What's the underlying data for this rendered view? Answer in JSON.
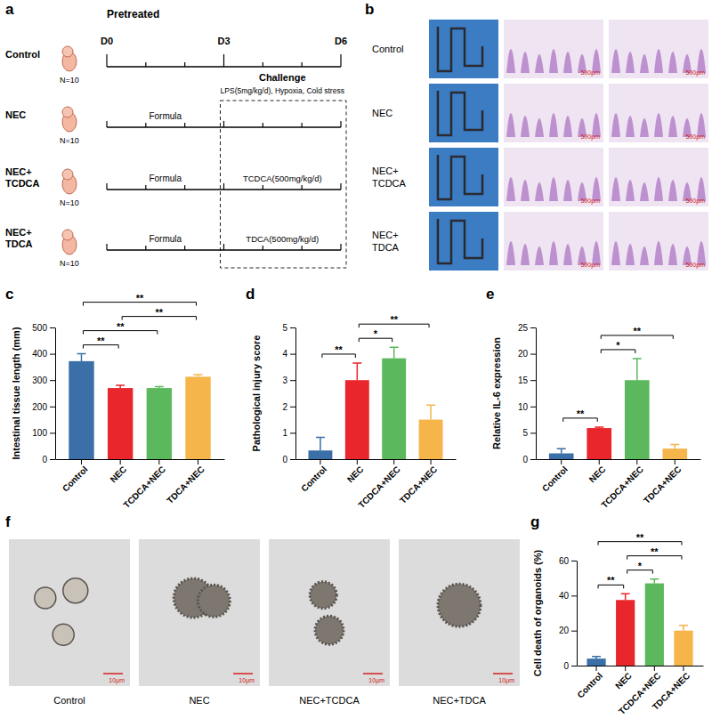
{
  "chart_data": [
    {
      "type": "bar",
      "panel": "c",
      "y_label": "Intestinal tissue length (mm)",
      "categories": [
        "Control",
        "NEC",
        "TCDCA+NEC",
        "TDCA+NEC"
      ],
      "values": [
        372,
        270,
        270,
        313
      ],
      "error": [
        28,
        10,
        5,
        8
      ],
      "colors": [
        "#3a6fa8",
        "#e8262b",
        "#5cb85c",
        "#f5b54a"
      ],
      "ylim": [
        0,
        500
      ],
      "yticks": [
        0,
        100,
        200,
        300,
        400,
        500
      ],
      "annotations": [
        {
          "between": [
            "Control",
            "NEC"
          ],
          "label": "**"
        },
        {
          "between": [
            "Control",
            "TCDCA+NEC"
          ],
          "label": "**"
        },
        {
          "between": [
            "Control",
            "TDCA+NEC"
          ],
          "label": "**"
        },
        {
          "between": [
            "NEC",
            "TDCA+NEC"
          ],
          "label": "**"
        }
      ]
    },
    {
      "type": "bar",
      "panel": "d",
      "y_label": "Pathological injury score",
      "categories": [
        "Control",
        "NEC",
        "TCDCA+NEC",
        "TDCA+NEC"
      ],
      "values": [
        0.33,
        3.0,
        3.83,
        1.5
      ],
      "error": [
        0.5,
        0.65,
        0.42,
        0.55
      ],
      "colors": [
        "#3a6fa8",
        "#e8262b",
        "#5cb85c",
        "#f5b54a"
      ],
      "ylim": [
        0,
        5
      ],
      "yticks": [
        0,
        1,
        2,
        3,
        4,
        5
      ],
      "annotations": [
        {
          "between": [
            "Control",
            "NEC"
          ],
          "label": "**"
        },
        {
          "between": [
            "NEC",
            "TCDCA+NEC"
          ],
          "label": "*"
        },
        {
          "between": [
            "NEC",
            "TDCA+NEC"
          ],
          "label": "**"
        }
      ]
    },
    {
      "type": "bar",
      "panel": "e",
      "y_label": "Relative IL-6 expression",
      "categories": [
        "Control",
        "NEC",
        "TCDCA+NEC",
        "TDCA+NEC"
      ],
      "values": [
        1.1,
        5.9,
        15.0,
        2.0
      ],
      "error": [
        0.9,
        0.2,
        4.1,
        0.8
      ],
      "colors": [
        "#3a6fa8",
        "#e8262b",
        "#5cb85c",
        "#f5b54a"
      ],
      "ylim": [
        0,
        25
      ],
      "yticks": [
        0,
        5,
        10,
        15,
        20,
        25
      ],
      "annotations": [
        {
          "between": [
            "Control",
            "NEC"
          ],
          "label": "**"
        },
        {
          "between": [
            "NEC",
            "TCDCA+NEC"
          ],
          "label": "*"
        },
        {
          "between": [
            "NEC",
            "TDCA+NEC"
          ],
          "label": "**"
        }
      ]
    },
    {
      "type": "bar",
      "panel": "g",
      "y_label": "Cell death of organoids (%)",
      "categories": [
        "Control",
        "NEC",
        "TCDCA+NEC",
        "TDCA+NEC"
      ],
      "values": [
        4,
        37.5,
        47,
        20
      ],
      "error": [
        1.2,
        3.5,
        2.5,
        3
      ],
      "colors": [
        "#3a6fa8",
        "#e8262b",
        "#5cb85c",
        "#f5b54a"
      ],
      "ylim": [
        0,
        60
      ],
      "yticks": [
        0,
        20,
        40,
        60
      ],
      "annotations": [
        {
          "between": [
            "Control",
            "NEC"
          ],
          "label": "**"
        },
        {
          "between": [
            "NEC",
            "TCDCA+NEC"
          ],
          "label": "*"
        },
        {
          "between": [
            "NEC",
            "TDCA+NEC"
          ],
          "label": "**"
        },
        {
          "between": [
            "Control",
            "TDCA+NEC"
          ],
          "label": "**"
        }
      ]
    }
  ],
  "diagram": {
    "panel": "a",
    "header": "Pretreated",
    "days": [
      "D0",
      null,
      null,
      "D3",
      null,
      null,
      "D6"
    ],
    "challenge": "Challenge",
    "challenge_detail": "LPS(5mg/kg/d), Hypoxia, Cold stress",
    "groups": [
      {
        "name": "Control",
        "n": "N=10"
      },
      {
        "name": "NEC",
        "n": "N=10",
        "pretreat": "Formula"
      },
      {
        "name": "NEC+TCDCA",
        "n": "N=10",
        "pretreat": "Formula",
        "treatment": "TCDCA(500mg/kg/d)"
      },
      {
        "name": "NEC+TDCA",
        "n": "N=10",
        "pretreat": "Formula",
        "treatment": "TDCA(500mg/kg/d)"
      }
    ]
  },
  "tissue_images": {
    "panel": "b",
    "rows": [
      "Control",
      "NEC",
      "NEC+TCDCA",
      "NEC+TDCA"
    ],
    "scale": "500μm"
  },
  "organoid_images": {
    "panel": "f",
    "labels": [
      "Control",
      "NEC",
      "NEC+TCDCA",
      "NEC+TDCA"
    ],
    "scale": "10μm"
  }
}
